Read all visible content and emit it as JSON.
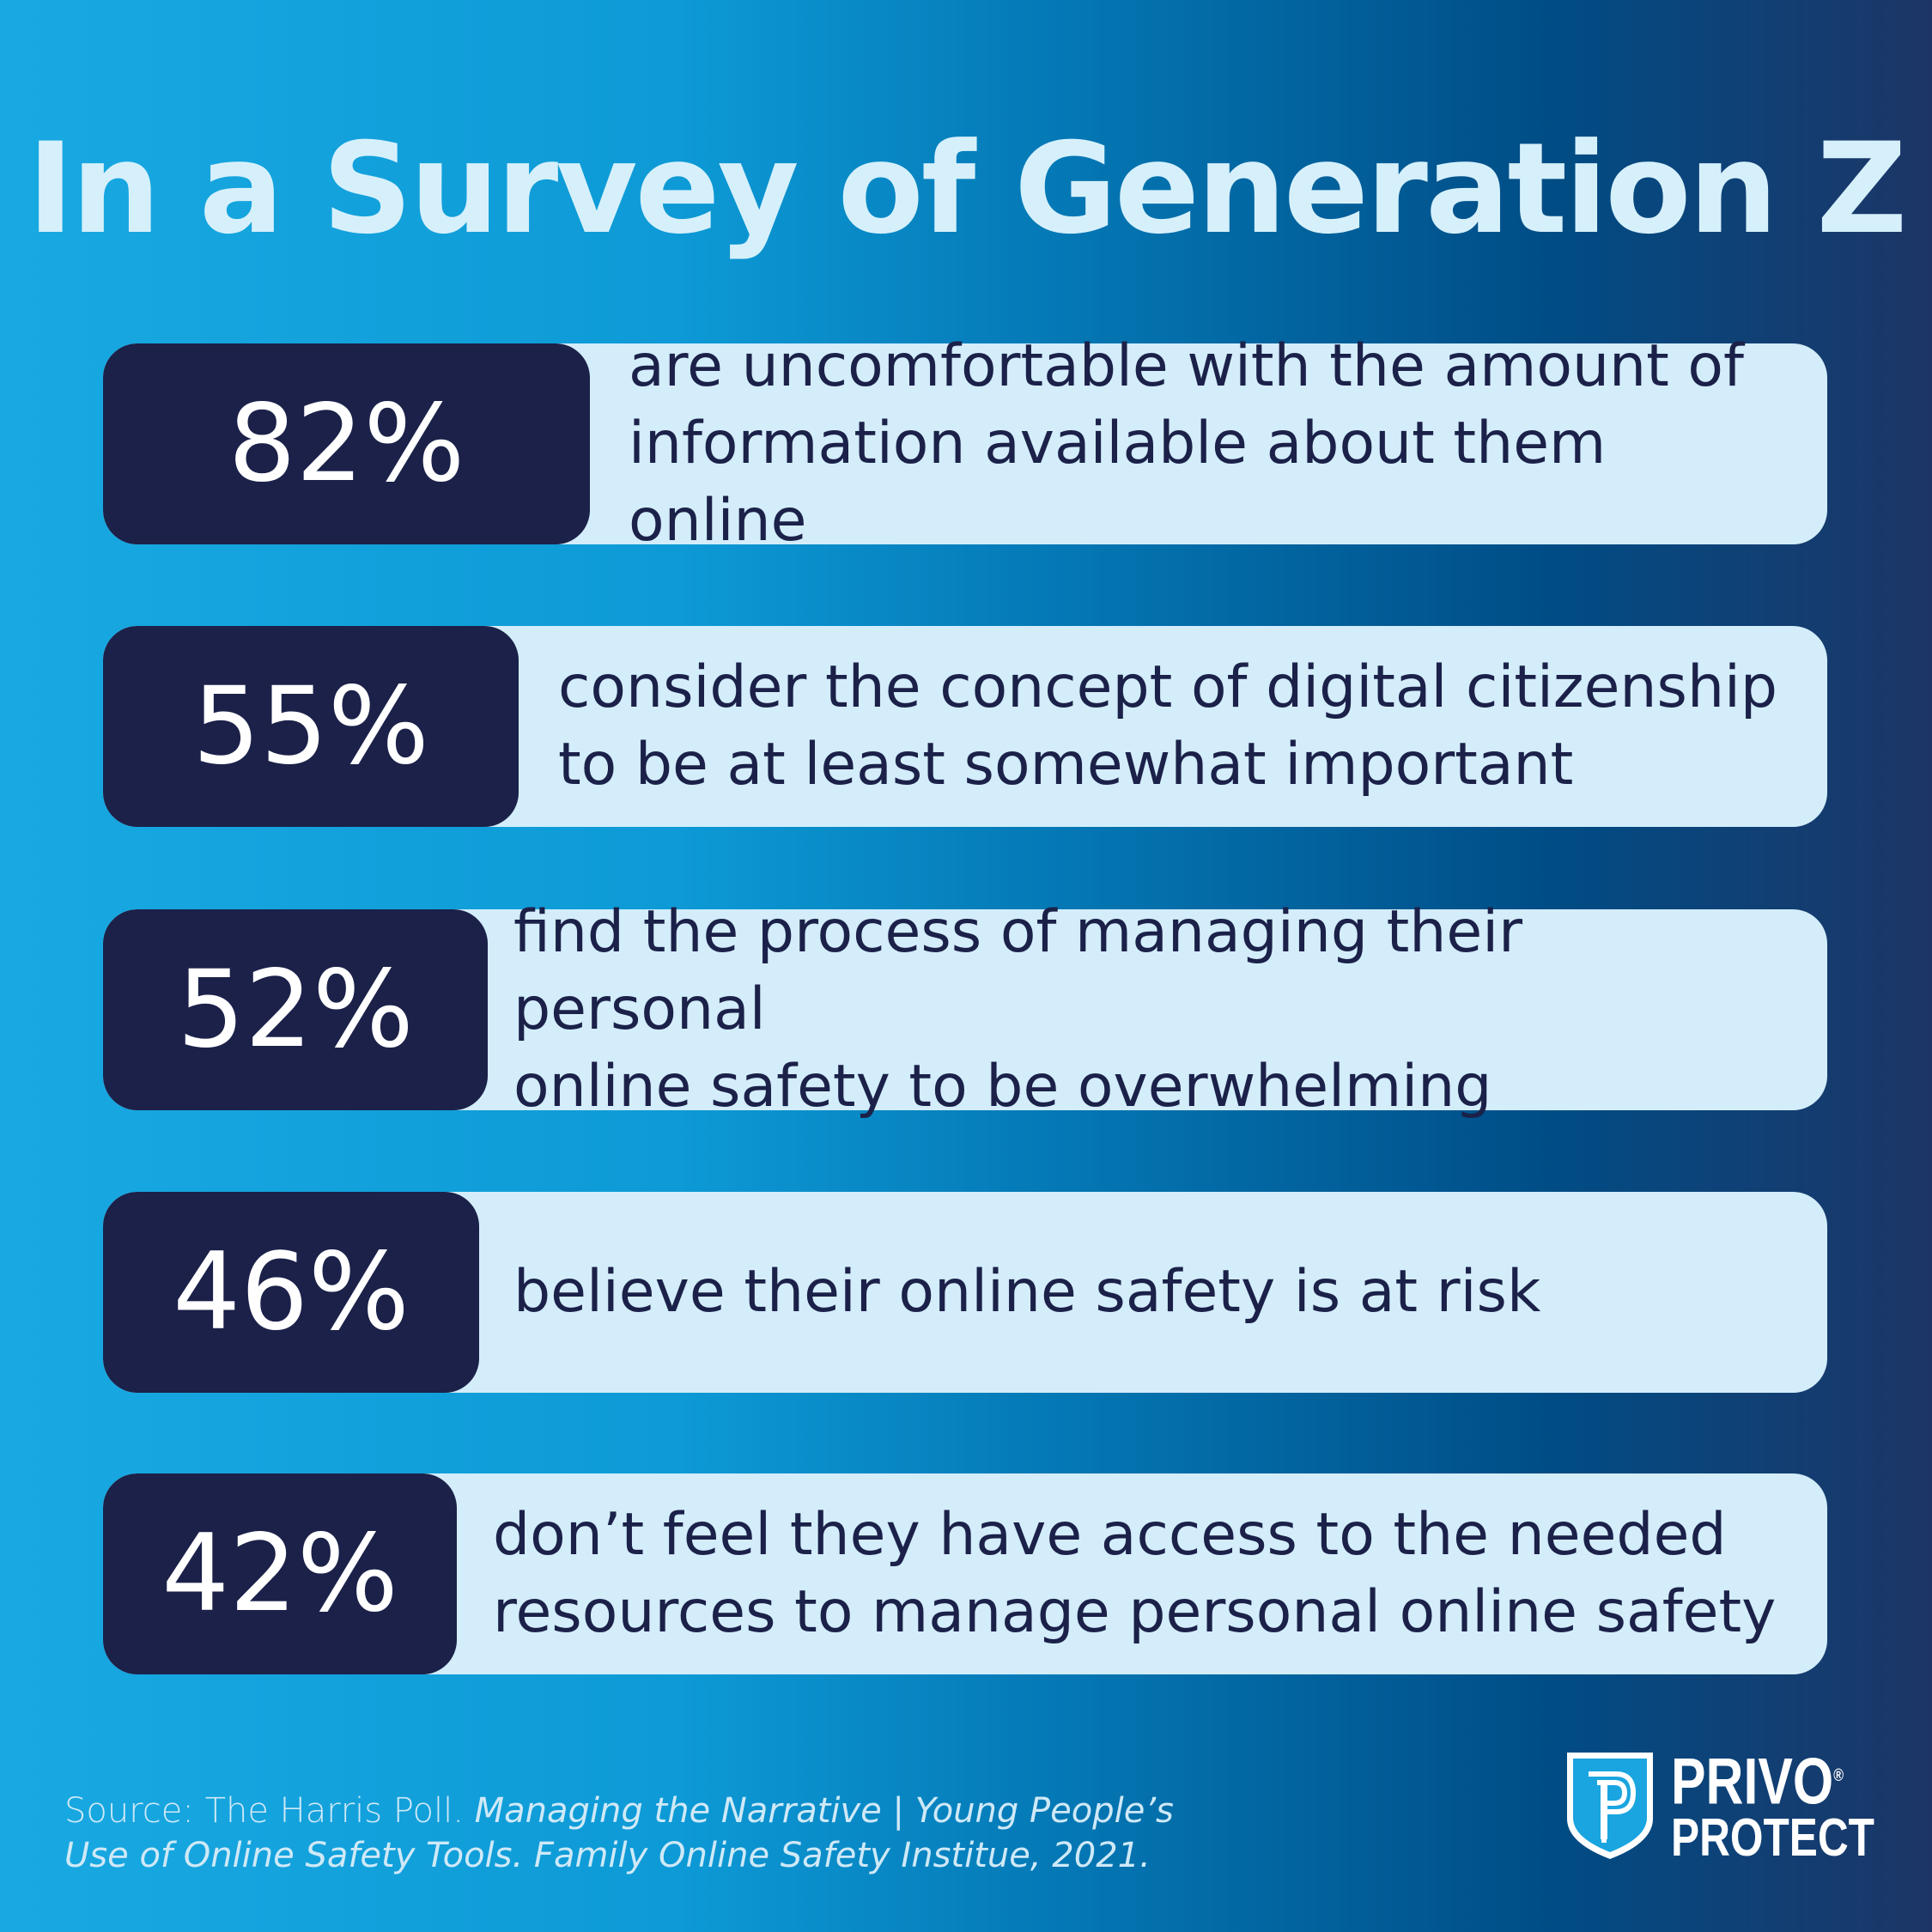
{
  "title": "In a Survey of Generation Z",
  "stats": [
    {
      "percent": "82%",
      "value": 82,
      "line1": "are uncomfortable with the amount of",
      "line2": "information available about them online"
    },
    {
      "percent": "55%",
      "value": 55,
      "line1": "consider the concept of digital citizenship",
      "line2": "to be at least somewhat important"
    },
    {
      "percent": "52%",
      "value": 52,
      "line1": "find the process of managing their personal",
      "line2": "online safety to be overwhelming"
    },
    {
      "percent": "46%",
      "value": 46,
      "line1": "believe their online safety is at risk",
      "line2": ""
    },
    {
      "percent": "42%",
      "value": 42,
      "line1": "don’t feel they have access to the needed",
      "line2": "resources to manage personal online safety"
    }
  ],
  "source": {
    "prefix": "Source: The Harris Poll. ",
    "italic1": "Managing the Narrative | Young People’s",
    "italic2": "Use of Online Safety Tools. Family Online Safety Institue, 2021."
  },
  "logo": {
    "line1": "PRIVO",
    "line2": "PROTECT",
    "mark": "®"
  },
  "colors": {
    "dark": "#1b2149",
    "light": "#d3edfa"
  }
}
